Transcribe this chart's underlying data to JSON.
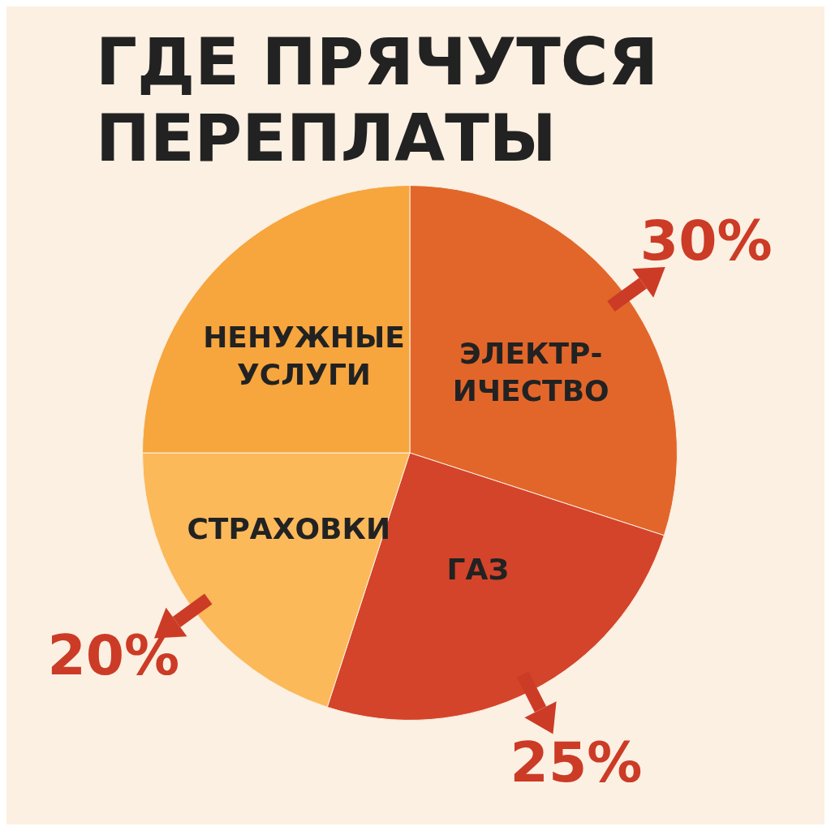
{
  "chart_data": {
    "type": "pie",
    "title": "ГДЕ ПРЯЧУТСЯ ПЕРЕПЛАТЫ",
    "categories": [
      "ЭЛЕКТР-ИЧЕСТВО",
      "ГАЗ",
      "СТРАХОВКИ",
      "НЕНУЖНЫЕ УСЛУГИ"
    ],
    "values": [
      30,
      25,
      20,
      25
    ],
    "value_labels": [
      "30%",
      "25%",
      "20%",
      null
    ],
    "colors": [
      "#e2662a",
      "#d4442a",
      "#fbb95a",
      "#f7a53d"
    ],
    "legend": false
  }
}
